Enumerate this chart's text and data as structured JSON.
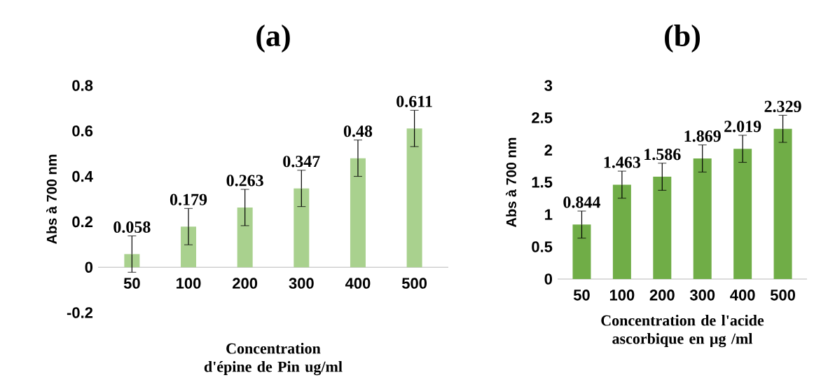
{
  "chart_data": [
    {
      "type": "bar",
      "title": "(a)",
      "xlabel": "Concentration d'épine de Pin ug/ml",
      "ylabel": "Abs à 700 nm",
      "categories": [
        "50",
        "100",
        "200",
        "300",
        "400",
        "500"
      ],
      "values": [
        0.058,
        0.179,
        0.263,
        0.347,
        0.48,
        0.611
      ],
      "errors": [
        0.08,
        0.08,
        0.08,
        0.08,
        0.08,
        0.08
      ],
      "value_labels": [
        "0.058",
        "0.179",
        "0.263",
        "0.347",
        "0.48",
        "0.611"
      ],
      "color": "#a9d18e",
      "ylim": [
        -0.2,
        0.8
      ],
      "yticks": [
        -0.2,
        0,
        0.2,
        0.4,
        0.6,
        0.8
      ]
    },
    {
      "type": "bar",
      "title": "(b)",
      "xlabel": "Concentration de l'acide ascorbique  en µg /ml",
      "ylabel": "Abs à 700 nm",
      "categories": [
        "50",
        "100",
        "200",
        "300",
        "400",
        "500"
      ],
      "values": [
        0.844,
        1.463,
        1.586,
        1.869,
        2.019,
        2.329
      ],
      "errors": [
        0.21,
        0.21,
        0.21,
        0.21,
        0.21,
        0.21
      ],
      "value_labels": [
        "0.844",
        "1.463",
        "1.586",
        "1.869",
        "2.019",
        "2.329"
      ],
      "color": "#70ad47",
      "ylim": [
        0,
        3
      ],
      "yticks": [
        0,
        0.5,
        1,
        1.5,
        2,
        2.5,
        3
      ]
    }
  ]
}
